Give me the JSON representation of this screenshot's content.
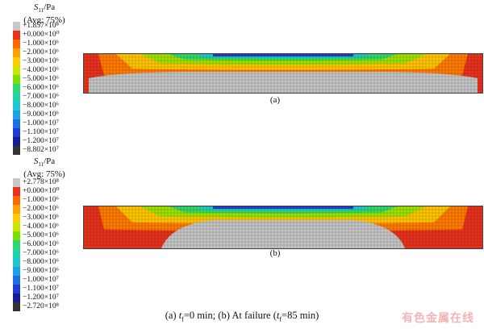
{
  "legend_palette": [
    "#c8c8c8",
    "#e8321e",
    "#ff6a00",
    "#ffa000",
    "#ffcc00",
    "#c8e600",
    "#7ae000",
    "#2ed86a",
    "#1ed2aa",
    "#1ec8d2",
    "#1ea0e6",
    "#1e6ee6",
    "#1e3cd2",
    "#141e96"
  ],
  "panels": [
    {
      "subfig_label": "(a)",
      "legend_title_var": "S",
      "legend_title_sub": "11",
      "legend_title_unit": "/Pa",
      "legend_title_avg": "(Avg: 75%)",
      "legend_labels": [
        "+1.857×10⁸",
        "+0.000×10⁰",
        "−1.000×10⁶",
        "−2.000×10⁶",
        "−3.000×10⁶",
        "−4.000×10⁶",
        "−5.000×10⁶",
        "−6.000×10⁶",
        "−7.000×10⁶",
        "−8.000×10⁶",
        "−9.000×10⁶",
        "−1.000×10⁷",
        "−1.100×10⁷",
        "−1.200×10⁷",
        "−8.802×10⁷"
      ]
    },
    {
      "subfig_label": "(b)",
      "legend_title_var": "S",
      "legend_title_sub": "11",
      "legend_title_unit": "/Pa",
      "legend_title_avg": "(Avg: 75%)",
      "legend_labels": [
        "+2.778×10⁸",
        "+0.000×10⁰",
        "−1.000×10⁶",
        "−2.000×10⁶",
        "−3.000×10⁶",
        "−4.000×10⁶",
        "−5.000×10⁶",
        "−6.000×10⁶",
        "−7.000×10⁶",
        "−8.000×10⁶",
        "−9.000×10⁶",
        "−1.000×10⁷",
        "−1.100×10⁷",
        "−1.200×10⁷",
        "−2.720×10⁸"
      ]
    }
  ],
  "caption": {
    "part_a": "(a) ",
    "t_var": "t",
    "t_sub": "f",
    "part_a_tail": "=0 min; (b) At failure (",
    "t_var2": "t",
    "t_sub2": "f",
    "part_b_tail": "=85 min)"
  },
  "watermark": "有色金属在线"
}
